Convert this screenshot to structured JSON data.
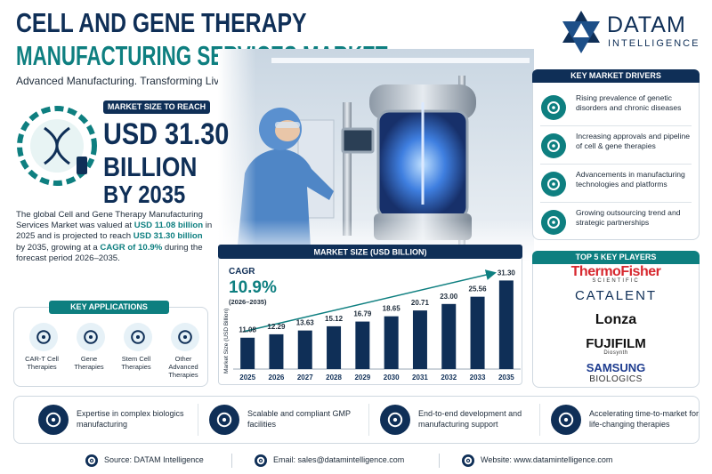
{
  "header": {
    "title_line1": "CELL AND GENE THERAPY",
    "title_line2": "MANUFACTURING SERVICES MARKET",
    "subtitle": "Advanced Manufacturing. Transforming Lives."
  },
  "logo": {
    "name": "DATAM",
    "tagline": "INTELLIGENCE"
  },
  "market_size": {
    "label": "MARKET SIZE TO REACH",
    "value": "USD 31.30",
    "unit": "BILLION",
    "year": "BY 2035"
  },
  "description": [
    {
      "text": "The global Cell and Gene Therapy Manufacturing Services Market was valued at ",
      "highlight": false
    },
    {
      "text": "USD 11.08 billion",
      "highlight": true
    },
    {
      "text": " in 2025 and is projected to reach ",
      "highlight": false
    },
    {
      "text": "USD 31.30 billion",
      "highlight": true
    },
    {
      "text": " by 2035, growing at a ",
      "highlight": false
    },
    {
      "text": "CAGR of 10.9%",
      "highlight": true
    },
    {
      "text": " during the forecast period 2026–2035.",
      "highlight": false
    }
  ],
  "key_applications": {
    "title": "KEY APPLICATIONS",
    "items": [
      "CAR-T Cell Therapies",
      "Gene Therapies",
      "Stem Cell Therapies",
      "Other Advanced Therapies"
    ]
  },
  "chart_data": {
    "type": "bar",
    "title": "MARKET SIZE (USD BILLION)",
    "cagr_label": "CAGR",
    "cagr_value": "10.9%",
    "cagr_period": "(2026–2035)",
    "y_label": "Market Size (USD Billion)",
    "categories": [
      "2025",
      "2026",
      "2027",
      "2028",
      "2029",
      "2030",
      "2031",
      "2032",
      "2033",
      "2035"
    ],
    "values": [
      11.08,
      12.29,
      13.63,
      15.12,
      16.79,
      18.65,
      20.71,
      23.0,
      25.56,
      31.3
    ],
    "value_labels": [
      "11.08",
      "12.29",
      "13.63",
      "15.12",
      "16.79",
      "18.65",
      "20.71",
      "23.00",
      "25.56",
      "31.30"
    ],
    "color": "#0f2f57",
    "ylim": [
      0,
      33
    ]
  },
  "key_drivers": {
    "title": "KEY MARKET DRIVERS",
    "items": [
      "Rising prevalence of genetic disorders and chronic diseases",
      "Increasing approvals and pipeline of cell & gene therapies",
      "Advancements in manufacturing technologies and platforms",
      "Growing outsourcing trend and strategic partnerships"
    ]
  },
  "key_players": {
    "title": "TOP 5 KEY PLAYERS",
    "items": [
      {
        "name": "ThermoFisher",
        "sub": "SCIENTIFIC"
      },
      {
        "name": "CATALENT"
      },
      {
        "name": "Lonza"
      },
      {
        "name": "FUJIFILM",
        "sub": "Diosynth"
      },
      {
        "name": "SAMSUNG",
        "sub": "BIOLOGICS"
      }
    ]
  },
  "features": [
    "Expertise in complex biologics manufacturing",
    "Scalable and compliant GMP facilities",
    "End-to-end development and manufacturing support",
    "Accelerating time-to-market for life-changing therapies"
  ],
  "footer": [
    "Source: DATAM Intelligence",
    "Email: sales@datamintelligence.com",
    "Website: www.datamintelligence.com"
  ]
}
